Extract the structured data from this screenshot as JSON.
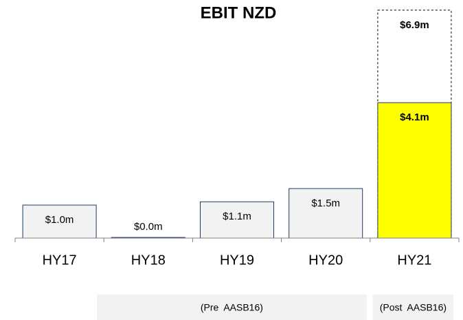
{
  "chart_data": {
    "type": "bar",
    "title": "EBIT NZD",
    "categories": [
      "HY17",
      "HY18",
      "HY19",
      "HY20",
      "HY21"
    ],
    "values": [
      1.0,
      0.0,
      1.1,
      1.5,
      4.1
    ],
    "value_labels": [
      "$1.0m",
      "$0.0m",
      "$1.1m",
      "$1.5m",
      "$4.1m"
    ],
    "colors": [
      "#f2f2f2",
      "#f2f2f2",
      "#f2f2f2",
      "#f2f2f2",
      "#ffff00"
    ],
    "outline": {
      "values": [
        null,
        null,
        null,
        null,
        6.9
      ],
      "value_labels": [
        null,
        null,
        null,
        null,
        "$6.9m"
      ],
      "style": "dashed"
    },
    "groups": [
      {
        "label": "(Pre  AASB16)",
        "categories": [
          0,
          3
        ]
      },
      {
        "label": "(Post  AASB16)",
        "categories": [
          4,
          4
        ]
      }
    ]
  }
}
